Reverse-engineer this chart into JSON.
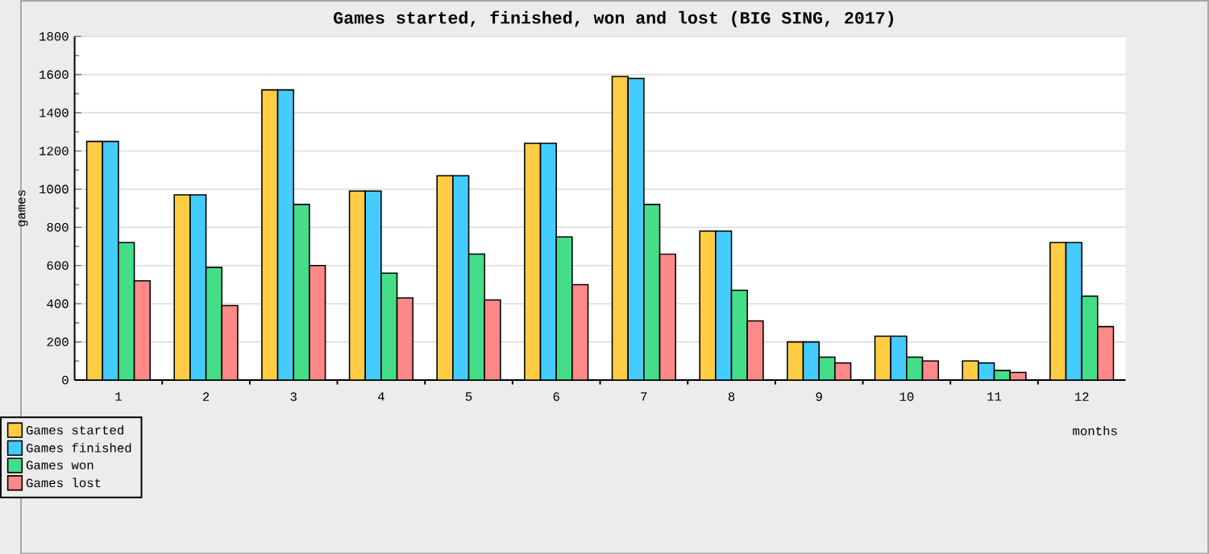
{
  "chart_data": {
    "type": "bar",
    "title": "Games started, finished, won and lost (BIG SING, 2017)",
    "xlabel": "months",
    "ylabel": "games",
    "categories": [
      "1",
      "2",
      "3",
      "4",
      "5",
      "6",
      "7",
      "8",
      "9",
      "10",
      "11",
      "12"
    ],
    "series": [
      {
        "name": "Games started",
        "color": "#ffcc44",
        "values": [
          1250,
          970,
          1520,
          990,
          1070,
          1240,
          1590,
          780,
          200,
          230,
          100,
          720
        ]
      },
      {
        "name": "Games finished",
        "color": "#44ccff",
        "values": [
          1250,
          970,
          1520,
          990,
          1070,
          1240,
          1580,
          780,
          200,
          230,
          90,
          720
        ]
      },
      {
        "name": "Games won",
        "color": "#44dd88",
        "values": [
          720,
          590,
          920,
          560,
          660,
          750,
          920,
          470,
          120,
          120,
          50,
          440
        ]
      },
      {
        "name": "Games lost",
        "color": "#ff8888",
        "values": [
          520,
          390,
          600,
          430,
          420,
          500,
          660,
          310,
          90,
          100,
          40,
          280
        ]
      }
    ],
    "ylim": [
      0,
      1800
    ],
    "yticks": [
      0,
      200,
      400,
      600,
      800,
      1000,
      1200,
      1400,
      1600,
      1800
    ],
    "grid": "y",
    "legend": "bottom left"
  }
}
